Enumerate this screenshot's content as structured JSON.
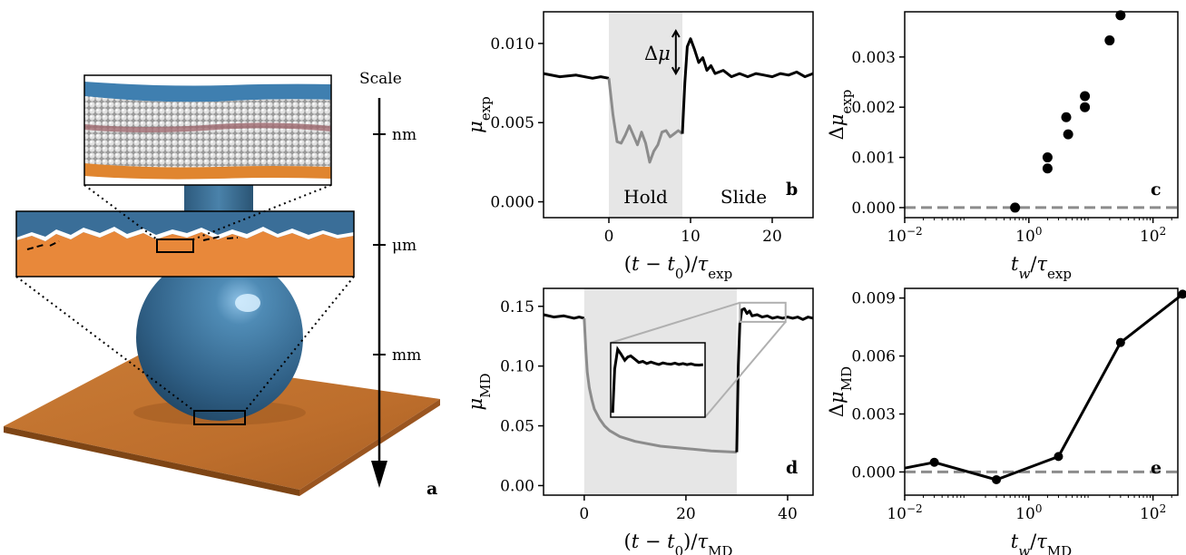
{
  "panel_a": {
    "label": "a",
    "scale_title": "Scale",
    "scale_marks": [
      "nm",
      "μm",
      "mm"
    ],
    "colors": {
      "blue": "#3b6f96",
      "orange": "#e8883a",
      "floor": "#c9762f"
    }
  },
  "colors": {
    "line": "#000000",
    "gray_line": "#8c8c8c",
    "shade": "#e6e6e6",
    "dashed": "#8c8c8c"
  },
  "chart_data": [
    {
      "panel": "b",
      "type": "line",
      "xlabel_main": "(t − t",
      "xlabel_sub0": "0",
      "xlabel_mid": ")/τ",
      "xlabel_sub": "exp",
      "ylabel_main": "μ",
      "ylabel_sub": "exp",
      "xlim": [
        -8,
        25
      ],
      "ylim": [
        -0.001,
        0.012
      ],
      "xticks": [
        0,
        10,
        20
      ],
      "yticks": [
        "0.000",
        "0.005",
        "0.010"
      ],
      "ytick_vals": [
        0,
        0.005,
        0.01
      ],
      "shaded": [
        0,
        9
      ],
      "region_labels": [
        "Hold",
        "Slide"
      ],
      "annotation": "Δμ",
      "series": [
        {
          "segment": "before",
          "color": "#000000",
          "x": [
            -8,
            -6,
            -4,
            -2,
            -1,
            0
          ],
          "y": [
            0.0081,
            0.0079,
            0.008,
            0.0078,
            0.0079,
            0.0078
          ]
        },
        {
          "segment": "hold",
          "color": "#8c8c8c",
          "x": [
            0,
            0.5,
            1,
            1.5,
            2,
            2.5,
            3,
            3.5,
            4,
            4.5,
            5,
            5.5,
            6,
            6.5,
            7,
            7.5,
            8,
            8.5,
            9
          ],
          "y": [
            0.0078,
            0.0055,
            0.0038,
            0.0037,
            0.0042,
            0.0048,
            0.0042,
            0.0036,
            0.0044,
            0.0037,
            0.0025,
            0.0032,
            0.0036,
            0.0044,
            0.0045,
            0.0041,
            0.0043,
            0.0045,
            0.0043
          ]
        },
        {
          "segment": "slide",
          "color": "#000000",
          "x": [
            9,
            9.3,
            9.6,
            10,
            10.5,
            11,
            11.5,
            12,
            12.5,
            13,
            14,
            15,
            16,
            17,
            18,
            19,
            20,
            21,
            22,
            23,
            24,
            25
          ],
          "y": [
            0.0043,
            0.0075,
            0.0098,
            0.0103,
            0.0096,
            0.0088,
            0.0091,
            0.0083,
            0.0086,
            0.0081,
            0.0083,
            0.0079,
            0.0081,
            0.0079,
            0.0081,
            0.008,
            0.0079,
            0.0081,
            0.008,
            0.0082,
            0.0079,
            0.0081
          ]
        }
      ]
    },
    {
      "panel": "c",
      "type": "scatter",
      "xlabel_main": "t",
      "xlabel_sub0": "w",
      "xlabel_mid": "/τ",
      "xlabel_sub": "exp",
      "ylabel_main": "Δμ",
      "ylabel_sub": "exp",
      "xscale": "log",
      "xlim_log10": [
        -2,
        2.4
      ],
      "ylim": [
        -0.0002,
        0.0039
      ],
      "xticks": [
        {
          "base": "10",
          "exp": "−2",
          "val": -2
        },
        {
          "base": "10",
          "exp": "0",
          "val": 0
        },
        {
          "base": "10",
          "exp": "2",
          "val": 2
        }
      ],
      "yticks": [
        "0.000",
        "0.001",
        "0.002",
        "0.003"
      ],
      "ytick_vals": [
        0,
        0.001,
        0.002,
        0.003
      ],
      "baseline": 0,
      "points": [
        {
          "x": 0.6,
          "y": 0.0
        },
        {
          "x": 2.0,
          "y": 0.00078
        },
        {
          "x": 2.0,
          "y": 0.001
        },
        {
          "x": 4.0,
          "y": 0.0018
        },
        {
          "x": 4.3,
          "y": 0.00146
        },
        {
          "x": 8.0,
          "y": 0.00222
        },
        {
          "x": 8.0,
          "y": 0.002
        },
        {
          "x": 20,
          "y": 0.00333
        },
        {
          "x": 30,
          "y": 0.00383
        }
      ]
    },
    {
      "panel": "d",
      "type": "line",
      "xlabel_main": "(t − t",
      "xlabel_sub0": "0",
      "xlabel_mid": ")/τ",
      "xlabel_sub": "MD",
      "ylabel_main": "μ",
      "ylabel_sub": "MD",
      "xlim": [
        -8,
        45
      ],
      "ylim": [
        -0.008,
        0.165
      ],
      "xticks": [
        0,
        20,
        40
      ],
      "yticks": [
        "0.00",
        "0.05",
        "0.10",
        "0.15"
      ],
      "ytick_vals": [
        0,
        0.05,
        0.1,
        0.15
      ],
      "shaded": [
        0,
        30
      ],
      "series": [
        {
          "segment": "before",
          "color": "#000000",
          "x": [
            -8,
            -6,
            -4,
            -2,
            -1,
            0
          ],
          "y": [
            0.143,
            0.141,
            0.142,
            0.14,
            0.141,
            0.14
          ]
        },
        {
          "segment": "hold",
          "color": "#8c8c8c",
          "x": [
            0,
            0.3,
            0.6,
            1,
            1.5,
            2,
            3,
            4,
            5,
            7,
            10,
            15,
            20,
            25,
            30
          ],
          "y": [
            0.14,
            0.115,
            0.095,
            0.082,
            0.072,
            0.064,
            0.056,
            0.05,
            0.046,
            0.041,
            0.037,
            0.033,
            0.031,
            0.029,
            0.028
          ]
        },
        {
          "segment": "slide",
          "color": "#000000",
          "x": [
            30,
            30.3,
            30.6,
            31,
            31.5,
            32,
            32.5,
            33,
            34,
            35,
            36,
            37,
            38,
            39,
            40,
            41,
            42,
            43,
            44,
            45
          ],
          "y": [
            0.028,
            0.1,
            0.135,
            0.147,
            0.148,
            0.144,
            0.146,
            0.142,
            0.143,
            0.141,
            0.142,
            0.14,
            0.141,
            0.14,
            0.141,
            0.14,
            0.141,
            0.139,
            0.141,
            0.14
          ]
        }
      ],
      "inset": {
        "x": [
          30.8,
          31,
          31.3,
          31.6,
          32,
          32.3,
          32.6,
          33,
          33.4,
          33.8,
          34.2,
          34.6,
          35,
          35.4,
          35.8,
          36.2,
          36.6,
          37,
          37.4,
          37.8,
          38.2,
          38.6,
          39,
          39.4,
          39.8
        ],
        "y": [
          0.12,
          0.14,
          0.149,
          0.147,
          0.144,
          0.1455,
          0.146,
          0.1445,
          0.143,
          0.1435,
          0.1425,
          0.1432,
          0.1426,
          0.1421,
          0.1428,
          0.1424,
          0.1422,
          0.1427,
          0.1421,
          0.1425,
          0.142,
          0.1424,
          0.1419,
          0.1418,
          0.142
        ]
      }
    },
    {
      "panel": "e",
      "type": "line",
      "xlabel_main": "t",
      "xlabel_sub0": "w",
      "xlabel_mid": "/τ",
      "xlabel_sub": "MD",
      "ylabel_main": "Δμ",
      "ylabel_sub": "MD",
      "xscale": "log",
      "xlim_log10": [
        -2,
        2.4
      ],
      "ylim": [
        -0.0012,
        0.0095
      ],
      "xticks": [
        {
          "base": "10",
          "exp": "−2",
          "val": -2
        },
        {
          "base": "10",
          "exp": "0",
          "val": 0
        },
        {
          "base": "10",
          "exp": "2",
          "val": 2
        }
      ],
      "yticks": [
        "0.000",
        "0.003",
        "0.006",
        "0.009"
      ],
      "ytick_vals": [
        0,
        0.003,
        0.006,
        0.009
      ],
      "baseline": 0,
      "x": [
        0.01,
        0.03,
        0.3,
        3,
        30,
        300
      ],
      "y": [
        0.0002,
        0.0005,
        -0.0004,
        0.0008,
        0.0067,
        0.0092
      ],
      "markers_from_index": 1
    }
  ]
}
